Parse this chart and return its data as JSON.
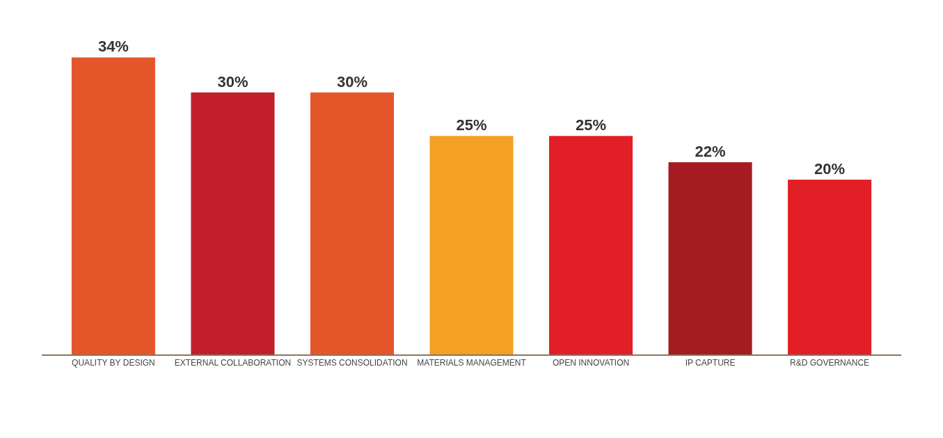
{
  "chart_data": {
    "type": "bar",
    "categories": [
      "QUALITY BY DESIGN",
      "EXTERNAL COLLABORATION",
      "SYSTEMS CONSOLIDATION",
      "MATERIALS MANAGEMENT",
      "OPEN INNOVATION",
      "IP CAPTURE",
      "R&D GOVERNANCE"
    ],
    "values": [
      34,
      30,
      30,
      25,
      25,
      22,
      20
    ],
    "value_labels": [
      "34%",
      "30%",
      "30%",
      "25%",
      "25%",
      "22%",
      "20%"
    ],
    "colors": [
      "#e4562a",
      "#c11f2c",
      "#e4562a",
      "#f4a025",
      "#e21f26",
      "#a41b20",
      "#e21f26"
    ],
    "orientation": "vertical"
  }
}
